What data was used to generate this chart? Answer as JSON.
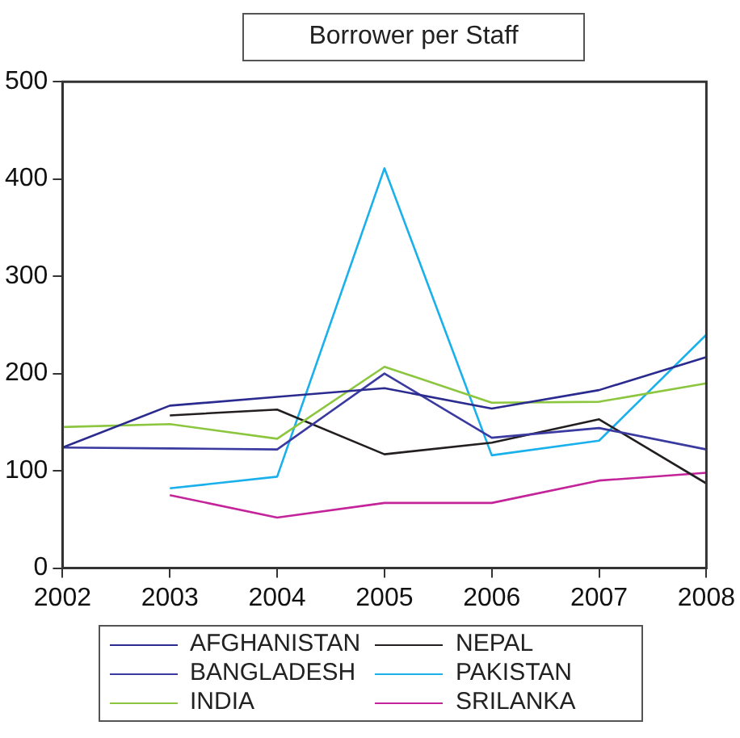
{
  "chart_data": {
    "type": "line",
    "title": "Borrower per Staff",
    "x": [
      2002,
      2003,
      2004,
      2005,
      2006,
      2007,
      2008
    ],
    "xlim": [
      2002,
      2008
    ],
    "xticks": [
      2002,
      2003,
      2004,
      2005,
      2006,
      2007,
      2008
    ],
    "ylim": [
      0,
      500
    ],
    "yticks": [
      0,
      100,
      200,
      300,
      400,
      500
    ],
    "grid": false,
    "legend": "bottom",
    "marker": "none",
    "line_style": "solid",
    "series": [
      {
        "name": "AFGHANISTAN",
        "color": "#2b2b8f",
        "values": [
          124,
          167,
          176,
          185,
          164,
          183,
          217
        ]
      },
      {
        "name": "BANGLADESH",
        "color": "#3a3aa0",
        "values": [
          124,
          123,
          122,
          200,
          134,
          144,
          122
        ]
      },
      {
        "name": "INDIA",
        "color": "#8cc63f",
        "values": [
          145,
          148,
          133,
          207,
          170,
          171,
          190
        ]
      },
      {
        "name": "NEPAL",
        "color": "#231f20",
        "values": [
          null,
          157,
          163,
          117,
          129,
          153,
          87
        ]
      },
      {
        "name": "PAKISTAN",
        "color": "#1ab0ec",
        "values": [
          null,
          82,
          94,
          411,
          116,
          131,
          240
        ]
      },
      {
        "name": "SRILANKA",
        "color": "#c4249a",
        "values": [
          null,
          75,
          52,
          67,
          67,
          90,
          98
        ]
      }
    ]
  }
}
